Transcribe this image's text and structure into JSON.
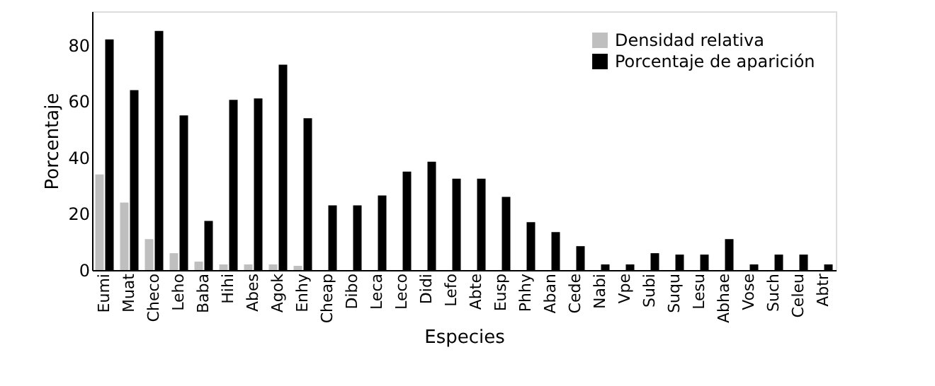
{
  "chart_data": {
    "type": "bar",
    "xlabel": "Especies",
    "ylabel": "Porcentaje",
    "categories": [
      "Eumi",
      "Muat",
      "Checo",
      "Leho",
      "Baba",
      "Hihi",
      "Abes",
      "Agok",
      "Enhy",
      "Cheap",
      "Dibo",
      "Leca",
      "Leco",
      "Didi",
      "Lefo",
      "Abte",
      "Eusp",
      "Phhy",
      "Aban",
      "Cede",
      "Nabi",
      "Vpe",
      "Subi",
      "Suqu",
      "Lesu",
      "Abhae",
      "Vose",
      "Such",
      "Celeu",
      "Abtr"
    ],
    "series": [
      {
        "name": "Densidad relativa",
        "color": "#bfbfbf",
        "values": [
          34,
          24,
          11,
          6,
          3,
          2,
          2,
          2,
          1.5,
          null,
          null,
          null,
          null,
          null,
          null,
          null,
          null,
          null,
          null,
          null,
          null,
          null,
          null,
          null,
          null,
          null,
          null,
          null,
          null,
          null
        ]
      },
      {
        "name": "Porcentaje de aparición",
        "color": "#000000",
        "values": [
          82,
          64,
          85,
          55,
          17.5,
          60.5,
          61,
          73,
          54,
          23,
          23,
          26.5,
          35,
          38.5,
          32.5,
          32.5,
          26,
          17,
          13.5,
          8.5,
          2,
          2,
          6,
          5.5,
          5.5,
          11,
          2,
          5.5,
          5.5,
          2
        ]
      }
    ],
    "ylim": [
      0,
      92
    ],
    "yticks": [
      0,
      20,
      40,
      60,
      80
    ],
    "grid": false,
    "legend": "top right"
  }
}
